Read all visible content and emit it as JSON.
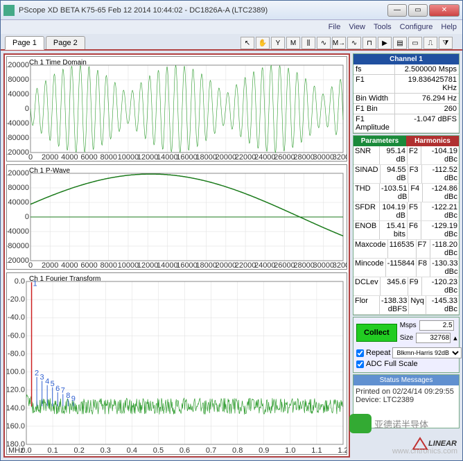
{
  "window": {
    "title": "PScope XD BETA K75-65 Feb 12 2014 10:44:02 - DC1826A-A (LTC2389)"
  },
  "menu": {
    "items": [
      "File",
      "View",
      "Tools",
      "Configure",
      "Help"
    ]
  },
  "tabs": {
    "t1": "Page 1",
    "t2": "Page 2"
  },
  "plot1": {
    "title": "Ch 1 Time Domain",
    "xmin": 0,
    "xmax": 32000,
    "xtick": 2000,
    "ymin": -120000,
    "ymax": 120000,
    "ytick": 40000,
    "color": "#2a9a2a",
    "bg": "#ffffff"
  },
  "plot2": {
    "title": "Ch 1 P-Wave",
    "xmin": 0,
    "xmax": 32000,
    "xtick": 2000,
    "ymin": -120000,
    "ymax": 120000,
    "ytick": 40000,
    "color": "#1a7a1a",
    "bg": "#ffffff"
  },
  "plot3": {
    "title": "Ch 1 Fourier Transform",
    "xunit": "MHz",
    "xmin": 0.0,
    "xmax": 1.2,
    "xtick": 0.1,
    "ymin": -180,
    "ymax": 0,
    "ytick": 20,
    "peak_color": "#cc2020",
    "noise_color": "#2a9a2a",
    "bg": "#ffffff",
    "harmonic_labels": [
      "2",
      "3",
      "4",
      "5",
      "6",
      "7",
      "8",
      "9"
    ],
    "harmonic_color": "#3060d0"
  },
  "channel": {
    "hdr": "Channel 1",
    "rows": [
      {
        "k": "fs",
        "v": "2.500000 Msps"
      },
      {
        "k": "F1",
        "v": "19.836425781 KHz"
      },
      {
        "k": "Bin Width",
        "v": "76.294 Hz"
      },
      {
        "k": "F1 Bin",
        "v": "260"
      },
      {
        "k": "F1 Amplitude",
        "v": "-1.047 dBFS"
      }
    ]
  },
  "params": {
    "h1": "Parameters",
    "h2": "Harmonics",
    "rows": [
      {
        "p": "SNR",
        "pv": "95.14 dB",
        "h": "F2",
        "hv": "-104.19 dBc"
      },
      {
        "p": "SINAD",
        "pv": "94.55 dB",
        "h": "F3",
        "hv": "-112.52 dBc"
      },
      {
        "p": "THD",
        "pv": "-103.51 dB",
        "h": "F4",
        "hv": "-124.86 dBc"
      },
      {
        "p": "SFDR",
        "pv": "104.19 dB",
        "h": "F5",
        "hv": "-122.21 dBc"
      },
      {
        "p": "ENOB",
        "pv": "15.41 bits",
        "h": "F6",
        "hv": "-129.19 dBc"
      },
      {
        "p": "Maxcode",
        "pv": "116535",
        "h": "F7",
        "hv": "-118.20 dBc"
      },
      {
        "p": "Mincode",
        "pv": "-115844",
        "h": "F8",
        "hv": "-130.33 dBc"
      },
      {
        "p": "DCLev",
        "pv": "345.6",
        "h": "F9",
        "hv": "-120.23 dBc"
      },
      {
        "p": "Flor",
        "pv": "-138.33 dBFS",
        "h": "Nyq",
        "hv": "-145.33 dBc"
      }
    ]
  },
  "ctrl": {
    "collect": "Collect",
    "msps_lbl": "Msps",
    "msps_val": "2.5",
    "size_lbl": "Size",
    "size_val": "32768",
    "repeat": "Repeat",
    "window": "Blkmn-Harris 92dB",
    "adc": "ADC Full Scale"
  },
  "status": {
    "hdr": "Status Messages",
    "line1": "Printed on 02/24/14 09:29:55",
    "line2": "Device: LTC2389"
  },
  "logo": "LINEAR",
  "watermark": "www.cntronics.com",
  "bubble": "亚德诺半导体"
}
